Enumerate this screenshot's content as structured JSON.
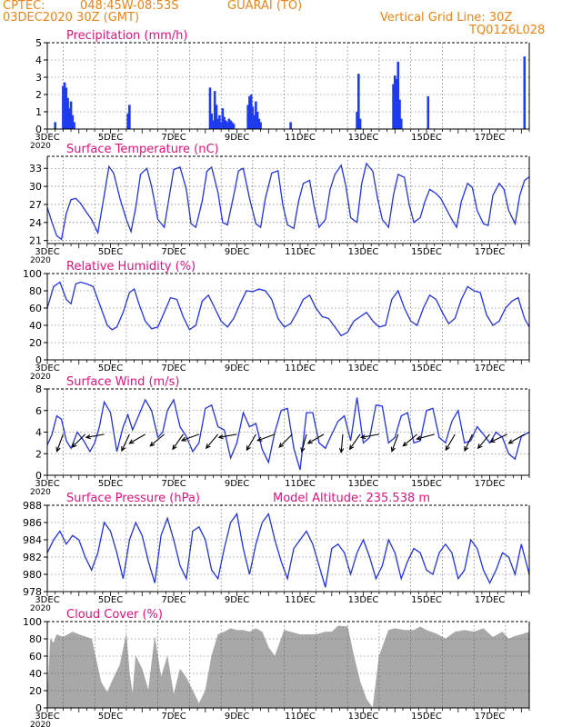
{
  "header": {
    "source": "CPTEC:",
    "coords": "048:45W-08:53S",
    "location": "GUARAI (TO)",
    "run": "03DEC2020 30Z (GMT)",
    "grid_note": "Vertical Grid Line: 30Z",
    "model_code": "TQ0126L028"
  },
  "colors": {
    "header": "#e8841a",
    "panel_title": "#d8157a",
    "series": "#2233dd",
    "bars": "#1f3bf0",
    "cloud": "#a8a8a8",
    "wind_arrow": "#000000"
  },
  "chart_data": [
    {
      "type": "bar",
      "title": "Precipitation (mm/h)",
      "ylim": [
        0,
        5
      ],
      "yticks": [
        0,
        1,
        2,
        3,
        4,
        5
      ],
      "xlim": [
        0,
        15.25
      ],
      "xtick_positions": [
        0,
        2,
        4,
        6,
        8,
        10,
        12,
        14
      ],
      "xtick_labels": [
        "3DEC",
        "5DEC",
        "7DEC",
        "9DEC",
        "11DEC",
        "13DEC",
        "15DEC",
        "17DEC"
      ],
      "year_label": "2020",
      "grid": true,
      "x": [
        0.25,
        0.5,
        0.55,
        0.6,
        0.65,
        0.7,
        0.75,
        0.8,
        0.85,
        2.55,
        2.6,
        5.15,
        5.2,
        5.25,
        5.3,
        5.35,
        5.4,
        5.45,
        5.5,
        5.55,
        5.6,
        5.65,
        5.7,
        5.75,
        5.8,
        5.85,
        5.9,
        6.35,
        6.4,
        6.45,
        6.5,
        6.55,
        6.6,
        6.65,
        6.7,
        6.75,
        7.7,
        9.8,
        9.85,
        9.9,
        10.95,
        11.0,
        11.05,
        11.1,
        11.15,
        11.2,
        12.05,
        15.1
      ],
      "values": [
        0.4,
        2.5,
        2.7,
        2.4,
        1.8,
        1.2,
        1.6,
        0.8,
        0.4,
        0.9,
        1.4,
        2.4,
        0.9,
        0.5,
        2.2,
        1.4,
        0.6,
        0.8,
        0.4,
        1.2,
        0.7,
        0.5,
        0.4,
        0.6,
        0.5,
        0.4,
        0.3,
        1.4,
        1.9,
        2.0,
        1.3,
        0.8,
        1.6,
        1.0,
        0.6,
        0.4,
        0.4,
        1.0,
        3.2,
        0.6,
        2.6,
        3.1,
        2.9,
        3.9,
        1.7,
        0.6,
        1.9,
        4.2
      ]
    },
    {
      "type": "line",
      "title": "Surface Temperature (nC)",
      "ylim": [
        20.5,
        35
      ],
      "yticks": [
        21,
        24,
        27,
        30,
        33
      ],
      "xlim": [
        0,
        15.25
      ],
      "xtick_positions": [
        0,
        2,
        4,
        6,
        8,
        10,
        12,
        14
      ],
      "xtick_labels": [
        "3DEC",
        "5DEC",
        "7DEC",
        "9DEC",
        "11DEC",
        "13DEC",
        "15DEC",
        "17DEC"
      ],
      "year_label": "2020",
      "grid": true,
      "x": [
        0,
        0.15,
        0.3,
        0.45,
        0.6,
        0.75,
        0.9,
        1.05,
        1.2,
        1.4,
        1.6,
        1.8,
        1.95,
        2.1,
        2.3,
        2.5,
        2.65,
        2.8,
        2.95,
        3.15,
        3.3,
        3.5,
        3.7,
        3.85,
        4.0,
        4.2,
        4.4,
        4.55,
        4.7,
        4.9,
        5.05,
        5.2,
        5.4,
        5.55,
        5.7,
        5.9,
        6.05,
        6.2,
        6.4,
        6.6,
        6.75,
        6.9,
        7.1,
        7.3,
        7.45,
        7.6,
        7.8,
        7.95,
        8.1,
        8.3,
        8.45,
        8.6,
        8.8,
        8.95,
        9.1,
        9.3,
        9.45,
        9.6,
        9.8,
        9.95,
        10.1,
        10.3,
        10.45,
        10.6,
        10.8,
        10.95,
        11.1,
        11.3,
        11.45,
        11.6,
        11.8,
        11.95,
        12.1,
        12.3,
        12.45,
        12.6,
        12.8,
        12.95,
        13.1,
        13.3,
        13.45,
        13.6,
        13.8,
        13.95,
        14.1,
        14.3,
        14.45,
        14.6,
        14.8,
        14.95,
        15.1,
        15.25
      ],
      "values": [
        26.5,
        24.0,
        21.8,
        21.2,
        25.5,
        27.8,
        28.0,
        27.2,
        26.0,
        24.5,
        22.3,
        28.5,
        33.3,
        32.2,
        28.0,
        24.5,
        22.5,
        26.5,
        32.0,
        33.0,
        30.0,
        24.5,
        23.2,
        28.0,
        32.8,
        33.2,
        29.5,
        23.8,
        23.2,
        27.5,
        32.5,
        33.2,
        29.0,
        24.0,
        23.6,
        28.5,
        32.6,
        33.0,
        28.0,
        23.8,
        23.2,
        28.0,
        32.2,
        32.6,
        27.0,
        23.6,
        23.0,
        27.5,
        30.5,
        31.0,
        26.5,
        23.2,
        24.5,
        29.5,
        32.0,
        33.5,
        30.0,
        24.8,
        24.0,
        30.5,
        33.8,
        32.5,
        28.0,
        24.5,
        23.2,
        28.5,
        32.0,
        31.5,
        27.0,
        24.0,
        24.8,
        27.5,
        29.5,
        28.8,
        28.0,
        26.5,
        24.5,
        23.2,
        27.5,
        30.5,
        29.8,
        26.0,
        23.8,
        23.5,
        28.5,
        30.5,
        29.5,
        26.0,
        23.8,
        28.5,
        31.0,
        31.6
      ]
    },
    {
      "type": "line",
      "title": "Relative Humidity (%)",
      "ylim": [
        0,
        100
      ],
      "yticks": [
        0,
        20,
        40,
        60,
        80,
        100
      ],
      "xlim": [
        0,
        15.25
      ],
      "xtick_positions": [
        0,
        2,
        4,
        6,
        8,
        10,
        12,
        14
      ],
      "xtick_labels": [
        "3DEC",
        "5DEC",
        "7DEC",
        "9DEC",
        "11DEC",
        "13DEC",
        "15DEC",
        "17DEC"
      ],
      "year_label": "2020",
      "grid": true,
      "x": [
        0,
        0.2,
        0.4,
        0.6,
        0.75,
        0.9,
        1.05,
        1.25,
        1.45,
        1.6,
        1.75,
        1.9,
        2.05,
        2.2,
        2.4,
        2.6,
        2.75,
        2.9,
        3.1,
        3.3,
        3.5,
        3.7,
        3.9,
        4.1,
        4.3,
        4.5,
        4.7,
        4.9,
        5.1,
        5.3,
        5.5,
        5.7,
        5.9,
        6.1,
        6.3,
        6.5,
        6.7,
        6.9,
        7.1,
        7.3,
        7.5,
        7.7,
        7.9,
        8.1,
        8.3,
        8.5,
        8.7,
        8.9,
        9.1,
        9.3,
        9.5,
        9.7,
        9.9,
        10.1,
        10.3,
        10.5,
        10.7,
        10.9,
        11.1,
        11.3,
        11.5,
        11.7,
        11.9,
        12.1,
        12.3,
        12.5,
        12.7,
        12.9,
        13.1,
        13.3,
        13.5,
        13.7,
        13.9,
        14.1,
        14.3,
        14.5,
        14.7,
        14.9,
        15.1,
        15.25
      ],
      "values": [
        60,
        85,
        90,
        70,
        65,
        88,
        90,
        88,
        85,
        70,
        55,
        40,
        35,
        38,
        55,
        78,
        82,
        65,
        45,
        36,
        38,
        55,
        72,
        70,
        50,
        35,
        40,
        68,
        75,
        60,
        45,
        38,
        48,
        65,
        80,
        79,
        82,
        80,
        70,
        48,
        38,
        42,
        55,
        70,
        75,
        60,
        50,
        48,
        38,
        28,
        32,
        45,
        50,
        55,
        45,
        38,
        40,
        70,
        80,
        60,
        45,
        40,
        60,
        75,
        70,
        55,
        42,
        48,
        70,
        85,
        80,
        78,
        52,
        40,
        45,
        60,
        68,
        72,
        48,
        38
      ]
    },
    {
      "type": "line",
      "title": "Surface Wind (m/s)",
      "ylim": [
        0,
        8
      ],
      "yticks": [
        0,
        2,
        4,
        6,
        8
      ],
      "xlim": [
        0,
        15.25
      ],
      "xtick_positions": [
        0,
        2,
        4,
        6,
        8,
        10,
        12,
        14
      ],
      "xtick_labels": [
        "3DEC",
        "5DEC",
        "7DEC",
        "9DEC",
        "11DEC",
        "13DEC",
        "15DEC",
        "17DEC"
      ],
      "year_label": "2020",
      "grid": true,
      "x": [
        0,
        0.15,
        0.3,
        0.45,
        0.6,
        0.75,
        0.95,
        1.15,
        1.35,
        1.5,
        1.65,
        1.8,
        2.0,
        2.2,
        2.4,
        2.55,
        2.7,
        2.9,
        3.1,
        3.3,
        3.5,
        3.65,
        3.8,
        4.0,
        4.2,
        4.4,
        4.6,
        4.8,
        5.0,
        5.2,
        5.4,
        5.6,
        5.8,
        6.0,
        6.2,
        6.4,
        6.6,
        6.8,
        7.0,
        7.2,
        7.4,
        7.6,
        7.8,
        8.0,
        8.2,
        8.4,
        8.6,
        8.8,
        9.0,
        9.2,
        9.4,
        9.6,
        9.8,
        10.0,
        10.2,
        10.4,
        10.6,
        10.8,
        11.0,
        11.2,
        11.4,
        11.6,
        11.8,
        12.0,
        12.2,
        12.4,
        12.6,
        12.8,
        13.0,
        13.2,
        13.4,
        13.6,
        13.8,
        14.0,
        14.2,
        14.4,
        14.6,
        14.8,
        15.0,
        15.25
      ],
      "values": [
        2.8,
        3.8,
        5.5,
        5.2,
        3.2,
        2.5,
        4.0,
        3.2,
        2.2,
        3.0,
        4.5,
        6.8,
        5.8,
        2.2,
        4.5,
        5.6,
        4.2,
        5.6,
        7.0,
        6.0,
        3.5,
        4.0,
        6.0,
        7.0,
        4.5,
        3.6,
        2.2,
        3.0,
        6.2,
        6.5,
        4.5,
        4.2,
        1.6,
        3.0,
        5.8,
        4.5,
        4.8,
        2.4,
        1.2,
        4.0,
        6.0,
        6.2,
        2.5,
        0.5,
        5.8,
        5.8,
        3.0,
        2.5,
        3.8,
        5.0,
        5.5,
        3.2,
        7.2,
        3.0,
        3.5,
        6.5,
        6.4,
        3.0,
        3.5,
        5.5,
        5.8,
        3.0,
        3.2,
        6.0,
        6.2,
        3.5,
        3.0,
        5.0,
        6.0,
        3.0,
        3.2,
        4.5,
        3.8,
        3.0,
        4.0,
        3.5,
        2.0,
        1.5,
        3.6,
        4.0
      ],
      "wind_arrows_x": [
        0.5,
        1.2,
        1.8,
        2.6,
        3.1,
        3.7,
        4.3,
        4.8,
        5.4,
        6.0,
        6.6,
        7.2,
        7.75,
        8.2,
        8.75,
        9.35,
        9.9,
        10.5,
        11.1,
        11.7,
        12.25,
        12.9,
        13.45,
        14.0,
        14.55,
        15.1
      ],
      "wind_arrows_dir": [
        200,
        225,
        260,
        205,
        240,
        230,
        215,
        250,
        220,
        260,
        210,
        250,
        225,
        195,
        240,
        185,
        215,
        260,
        200,
        230,
        255,
        210,
        205,
        220,
        245,
        240
      ]
    },
    {
      "type": "line",
      "title": "Surface Pressure (hPa)",
      "annotation": "Model Altitude: 235.538 m",
      "ylim": [
        978,
        988
      ],
      "yticks": [
        978,
        980,
        982,
        984,
        986,
        988
      ],
      "xlim": [
        0,
        15.25
      ],
      "xtick_positions": [
        0,
        2,
        4,
        6,
        8,
        10,
        12,
        14
      ],
      "xtick_labels": [
        "3DEC",
        "5DEC",
        "7DEC",
        "9DEC",
        "11DEC",
        "13DEC",
        "15DEC",
        "17DEC"
      ],
      "year_label": "2020",
      "grid": true,
      "x": [
        0,
        0.2,
        0.4,
        0.6,
        0.8,
        1.0,
        1.2,
        1.4,
        1.6,
        1.8,
        2.0,
        2.2,
        2.4,
        2.6,
        2.8,
        3.0,
        3.2,
        3.4,
        3.6,
        3.8,
        4.0,
        4.2,
        4.4,
        4.6,
        4.8,
        5.0,
        5.2,
        5.4,
        5.6,
        5.8,
        6.0,
        6.2,
        6.4,
        6.6,
        6.8,
        7.0,
        7.2,
        7.4,
        7.6,
        7.8,
        8.0,
        8.2,
        8.4,
        8.6,
        8.8,
        9.0,
        9.2,
        9.4,
        9.6,
        9.8,
        10.0,
        10.2,
        10.4,
        10.6,
        10.8,
        11.0,
        11.2,
        11.4,
        11.6,
        11.8,
        12.0,
        12.2,
        12.4,
        12.6,
        12.8,
        13.0,
        13.2,
        13.4,
        13.6,
        13.8,
        14.0,
        14.2,
        14.4,
        14.6,
        14.8,
        15.0,
        15.25
      ],
      "values": [
        982.5,
        984.0,
        985.0,
        983.5,
        984.5,
        984.0,
        982.0,
        980.5,
        982.5,
        986.0,
        985.0,
        982.5,
        979.5,
        984.0,
        986.0,
        984.5,
        981.5,
        979.0,
        984.5,
        986.5,
        984.0,
        981.0,
        979.5,
        985.0,
        985.5,
        984.0,
        980.5,
        979.5,
        983.0,
        986.0,
        987.0,
        983.0,
        980.0,
        983.5,
        986.0,
        987.0,
        984.0,
        981.5,
        979.5,
        983.0,
        984.0,
        985.0,
        983.5,
        981.0,
        978.5,
        983.0,
        983.5,
        982.5,
        980.0,
        982.5,
        984.0,
        982.0,
        979.5,
        981.0,
        984.0,
        982.5,
        979.5,
        981.5,
        983.0,
        982.5,
        980.5,
        980.0,
        982.5,
        983.5,
        982.5,
        979.5,
        980.5,
        984.0,
        983.0,
        980.5,
        979.0,
        980.5,
        982.5,
        982.0,
        980.0,
        983.5,
        980.0
      ]
    },
    {
      "type": "area",
      "title": "Cloud Cover (%)",
      "ylim": [
        0,
        100
      ],
      "yticks": [
        0,
        20,
        40,
        60,
        80,
        100
      ],
      "xlim": [
        0,
        15.25
      ],
      "xtick_positions": [
        0,
        2,
        4,
        6,
        8,
        10,
        12,
        14
      ],
      "xtick_labels": [
        "3DEC",
        "5DEC",
        "7DEC",
        "9DEC",
        "11DEC",
        "13DEC",
        "15DEC",
        "17DEC"
      ],
      "year_label": "2020",
      "grid": true,
      "x": [
        0,
        0.1,
        0.2,
        0.3,
        0.5,
        0.8,
        1.0,
        1.4,
        1.7,
        1.9,
        2.1,
        2.3,
        2.5,
        2.6,
        2.7,
        2.8,
        3.0,
        3.2,
        3.4,
        3.6,
        3.8,
        4.0,
        4.2,
        4.4,
        4.6,
        4.8,
        5.0,
        5.2,
        5.4,
        5.6,
        5.8,
        6.0,
        6.2,
        6.4,
        6.6,
        6.8,
        7.0,
        7.2,
        7.5,
        8.0,
        8.5,
        8.8,
        9.0,
        9.2,
        9.5,
        9.7,
        9.9,
        10.1,
        10.3,
        10.5,
        10.8,
        11.0,
        11.3,
        11.6,
        11.8,
        12.0,
        12.3,
        12.6,
        12.9,
        13.2,
        13.5,
        13.8,
        14.1,
        14.4,
        14.6,
        14.8,
        15.0,
        15.25
      ],
      "values": [
        10,
        80,
        75,
        85,
        82,
        88,
        85,
        80,
        30,
        18,
        35,
        50,
        85,
        40,
        15,
        60,
        45,
        20,
        82,
        35,
        60,
        15,
        45,
        35,
        20,
        5,
        20,
        60,
        85,
        88,
        92,
        90,
        90,
        88,
        92,
        88,
        70,
        60,
        90,
        85,
        85,
        88,
        88,
        95,
        94,
        60,
        30,
        10,
        0,
        60,
        90,
        92,
        90,
        90,
        94,
        90,
        86,
        80,
        88,
        90,
        88,
        92,
        82,
        88,
        80,
        83,
        85,
        88
      ]
    }
  ]
}
